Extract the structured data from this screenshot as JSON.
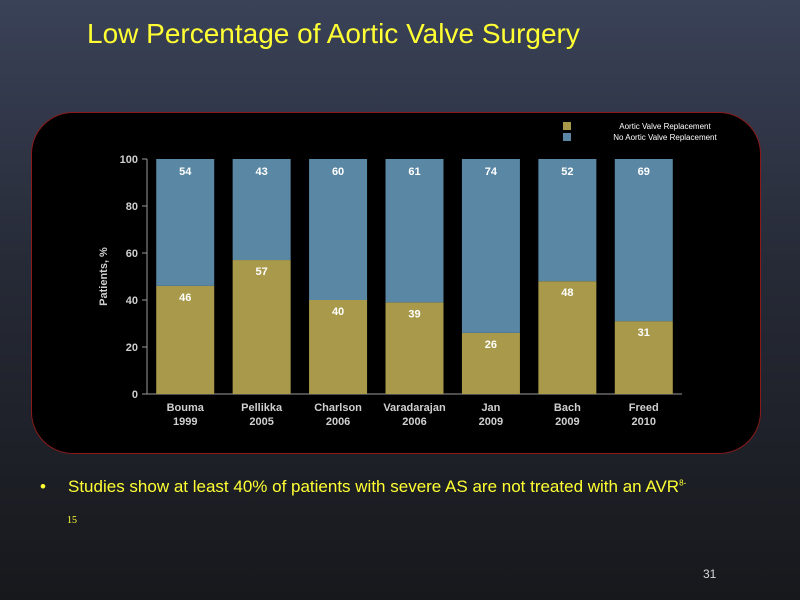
{
  "title": "Low Percentage of Aortic Valve Surgery",
  "bullet": {
    "marker": "•",
    "text": "Studies show at least 40% of patients with severe AS are not treated with an AVR",
    "ref_sup": "8-",
    "ref_cont": "15"
  },
  "slide_number": "31",
  "colors": {
    "avr": "#a89a4a",
    "no_avr": "#5a87a3",
    "title": "#ffff33"
  },
  "chart_data": {
    "type": "bar",
    "stacked": true,
    "categories": [
      [
        "Bouma",
        "1999"
      ],
      [
        "Pellikka",
        "2005"
      ],
      [
        "Charlson",
        "2006"
      ],
      [
        "Varadarajan",
        "2006"
      ],
      [
        "Jan",
        "2009"
      ],
      [
        "Bach",
        "2009"
      ],
      [
        "Freed",
        "2010"
      ]
    ],
    "series": [
      {
        "name": "Aortic Valve Replacement",
        "values": [
          46,
          57,
          40,
          39,
          26,
          48,
          31
        ]
      },
      {
        "name": "No Aortic Valve Replacement",
        "values": [
          54,
          43,
          60,
          61,
          74,
          52,
          69
        ]
      }
    ],
    "ylabel": "Patients, %",
    "ylim": [
      0,
      100
    ],
    "yticks": [
      0,
      20,
      40,
      60,
      80,
      100
    ],
    "grid": false,
    "legend_position": "top-right"
  }
}
